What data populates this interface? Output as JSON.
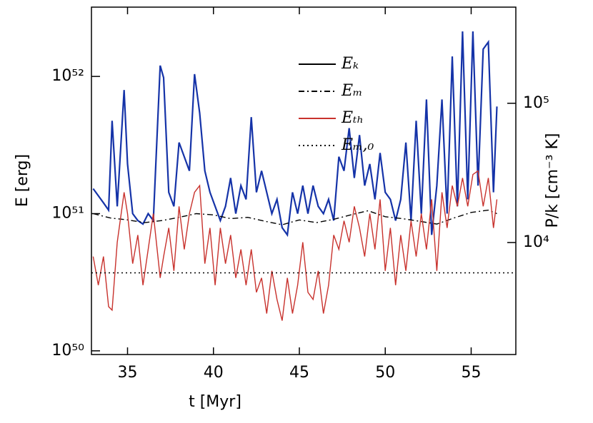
{
  "chart_data": {
    "type": "line",
    "xlabel": "t [Myr]",
    "ylabel": "E [erg]",
    "y2label": "P/k [cm⁻³ K]",
    "xlim": [
      32.9,
      57.6
    ],
    "xticks": [
      35,
      40,
      45,
      50,
      55
    ],
    "ylim": [
      9.4e+49,
      3.2e+52
    ],
    "ylog": true,
    "yticks": [
      {
        "value": 1e+50,
        "label": "10⁵⁰"
      },
      {
        "value": 1e+51,
        "label": "10⁵¹"
      },
      {
        "value": 1e+52,
        "label": "10⁵²"
      }
    ],
    "y2lim": [
      1570,
      490000
    ],
    "y2log": true,
    "y2ticks": [
      {
        "value": 10000,
        "label": "10⁴"
      },
      {
        "value": 100000,
        "label": "10⁵"
      }
    ],
    "legend": "top-center",
    "series": [
      {
        "name": "Eₖ",
        "color": "#1533a8",
        "legend_color": "#000000",
        "style": "solid",
        "x": [
          33.0,
          33.3,
          33.6,
          33.9,
          34.1,
          34.4,
          34.8,
          35.0,
          35.3,
          35.6,
          35.9,
          36.2,
          36.5,
          36.9,
          37.1,
          37.4,
          37.7,
          38.0,
          38.3,
          38.6,
          38.9,
          39.2,
          39.5,
          39.8,
          40.1,
          40.4,
          40.7,
          41.0,
          41.3,
          41.6,
          41.9,
          42.2,
          42.5,
          42.8,
          43.1,
          43.4,
          43.7,
          44.0,
          44.3,
          44.6,
          44.9,
          45.2,
          45.5,
          45.8,
          46.1,
          46.4,
          46.7,
          47.0,
          47.3,
          47.6,
          47.9,
          48.2,
          48.5,
          48.8,
          49.1,
          49.4,
          49.7,
          50.0,
          50.3,
          50.6,
          50.9,
          51.2,
          51.5,
          51.8,
          52.1,
          52.4,
          52.7,
          53.0,
          53.3,
          53.6,
          53.9,
          54.2,
          54.5,
          54.8,
          55.1,
          55.4,
          55.7,
          56.0,
          56.3,
          56.5
        ],
        "values": [
          1.52e+51,
          1.35e+51,
          1.2e+51,
          1.06e+51,
          4.75e+51,
          1.13e+51,
          7.96e+51,
          2.3e+51,
          1e+51,
          8.9e+50,
          8.4e+50,
          1e+51,
          8.9e+50,
          1.2e+52,
          9.8e+51,
          1.43e+51,
          1.13e+51,
          3.3e+51,
          2.6e+51,
          2.05e+51,
          1.04e+52,
          5.4e+51,
          2.05e+51,
          1.43e+51,
          1.13e+51,
          8.9e+50,
          1.13e+51,
          1.82e+51,
          1e+51,
          1.6e+51,
          1.27e+51,
          5.05e+51,
          1.43e+51,
          2.05e+51,
          1.43e+51,
          1e+51,
          1.27e+51,
          7.9e+50,
          7e+50,
          1.43e+51,
          1e+51,
          1.6e+51,
          1e+51,
          1.6e+51,
          1.13e+51,
          1e+51,
          1.27e+51,
          8.9e+50,
          2.6e+51,
          2.05e+51,
          4.2e+51,
          1.82e+51,
          3.74e+51,
          1.6e+51,
          2.3e+51,
          1.27e+51,
          2.77e+51,
          1.43e+51,
          1.27e+51,
          8.9e+50,
          1.27e+51,
          3.3e+51,
          8.9e+50,
          4.75e+51,
          1e+51,
          6.8e+51,
          7e+50,
          1.6e+51,
          6.8e+51,
          1e+51,
          1.4e+52,
          1.13e+51,
          2.13e+52,
          1.27e+51,
          2.13e+52,
          1.6e+51,
          1.58e+52,
          1.78e+52,
          1.43e+51,
          6.04e+51
        ]
      },
      {
        "name": "Eₘ",
        "color": "#000000",
        "style": "dashdot",
        "x": [
          33,
          34,
          35,
          36,
          37,
          38,
          39,
          40,
          41,
          42,
          43,
          44,
          45,
          46,
          47,
          48,
          49,
          50,
          51,
          52,
          53,
          54,
          55,
          56,
          56.5
        ],
        "values": [
          1e+51,
          9.3e+50,
          9e+50,
          8.6e+50,
          8.9e+50,
          9.4e+50,
          1e+51,
          9.8e+50,
          9.2e+50,
          9.4e+50,
          8.8e+50,
          8.3e+50,
          9e+50,
          8.6e+50,
          9.1e+50,
          9.8e+50,
          1.05e+51,
          9.5e+50,
          9.2e+50,
          8.8e+50,
          8.4e+50,
          9.3e+50,
          1.02e+51,
          1.06e+51,
          1e+51
        ]
      },
      {
        "name": "Eₜₕ",
        "color": "#c8322d",
        "style": "solid",
        "x": [
          33.0,
          33.3,
          33.6,
          33.9,
          34.1,
          34.4,
          34.8,
          35.0,
          35.3,
          35.6,
          35.9,
          36.2,
          36.5,
          36.9,
          37.1,
          37.4,
          37.7,
          38.0,
          38.3,
          38.6,
          38.9,
          39.2,
          39.5,
          39.8,
          40.1,
          40.4,
          40.7,
          41.0,
          41.3,
          41.6,
          41.9,
          42.2,
          42.5,
          42.8,
          43.1,
          43.4,
          43.7,
          44.0,
          44.3,
          44.6,
          44.9,
          45.2,
          45.5,
          45.8,
          46.1,
          46.4,
          46.7,
          47.0,
          47.3,
          47.6,
          47.9,
          48.2,
          48.5,
          48.8,
          49.1,
          49.4,
          49.7,
          50.0,
          50.3,
          50.6,
          50.9,
          51.2,
          51.5,
          51.8,
          52.1,
          52.4,
          52.7,
          53.0,
          53.3,
          53.6,
          53.9,
          54.2,
          54.5,
          54.8,
          55.1,
          55.4,
          55.7,
          56.0,
          56.3,
          56.5
        ],
        "values": [
          4.87e+50,
          3.01e+50,
          4.87e+50,
          2.1e+50,
          1.98e+50,
          6.19e+50,
          1.43e+51,
          1e+51,
          4.32e+50,
          6.98e+50,
          3.01e+50,
          5.49e+50,
          1e+51,
          3.4e+50,
          4.87e+50,
          7.87e+50,
          3.83e+50,
          1.13e+51,
          5.49e+50,
          1e+51,
          1.43e+51,
          1.6e+51,
          4.32e+50,
          7.87e+50,
          3.01e+50,
          7.87e+50,
          4.32e+50,
          6.98e+50,
          3.4e+50,
          5.49e+50,
          3.01e+50,
          5.49e+50,
          2.67e+50,
          3.4e+50,
          1.87e+50,
          3.83e+50,
          2.37e+50,
          1.66e+50,
          3.4e+50,
          1.87e+50,
          3.01e+50,
          6.19e+50,
          2.67e+50,
          2.37e+50,
          3.83e+50,
          1.87e+50,
          3.01e+50,
          6.98e+50,
          5.49e+50,
          8.87e+50,
          6.19e+50,
          1.13e+51,
          7.87e+50,
          4.87e+50,
          1e+51,
          5.49e+50,
          1.27e+51,
          3.83e+50,
          7.87e+50,
          3.01e+50,
          6.98e+50,
          3.83e+50,
          8.87e+50,
          4.87e+50,
          1e+51,
          5.49e+50,
          1.27e+51,
          3.83e+50,
          1.43e+51,
          7.87e+50,
          1.6e+51,
          1.13e+51,
          1.82e+51,
          1.13e+51,
          1.93e+51,
          2.05e+51,
          1.13e+51,
          1.82e+51,
          7.87e+50,
          1.27e+51
        ]
      },
      {
        "name": "Eₘ,₀",
        "color": "#000000",
        "style": "dotted",
        "x": [
          32.9,
          57.6
        ],
        "values": [
          3.7e+50,
          3.7e+50
        ]
      }
    ]
  }
}
